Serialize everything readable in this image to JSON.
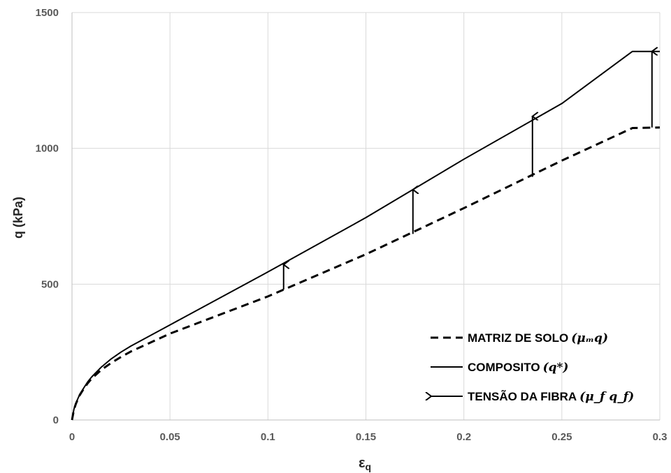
{
  "chart_data": {
    "type": "line",
    "xlabel_main": "ε",
    "xlabel_sub": "q",
    "ylabel": "q (kPa)",
    "xlim": [
      0,
      0.3
    ],
    "ylim": [
      0,
      1500
    ],
    "xticks": [
      0,
      0.05,
      0.1,
      0.15,
      0.2,
      0.25,
      0.3
    ],
    "yticks": [
      0,
      500,
      1000,
      1500
    ],
    "xtick_labels": [
      "0",
      "0.05",
      "0.1",
      "0.15",
      "0.2",
      "0.25",
      "0.3"
    ],
    "ytick_labels": [
      "0",
      "500",
      "1000",
      "1500"
    ],
    "grid": true,
    "legend_position": "bottom-right",
    "series": [
      {
        "name": "COMPOSITO (q*)",
        "style": "solid",
        "color": "#000000",
        "x": [
          0,
          0.001,
          0.002,
          0.004,
          0.006,
          0.008,
          0.01,
          0.015,
          0.02,
          0.025,
          0.03,
          0.05,
          0.1,
          0.15,
          0.2,
          0.25,
          0.286,
          0.3
        ],
        "y": [
          0,
          40,
          62,
          95,
          118,
          140,
          158,
          195,
          225,
          250,
          272,
          350,
          545,
          745,
          960,
          1165,
          1357,
          1357
        ]
      },
      {
        "name": "MATRIZ DE SOLO (μₘq)",
        "style": "dashed",
        "color": "#000000",
        "x": [
          0,
          0.001,
          0.002,
          0.004,
          0.006,
          0.008,
          0.01,
          0.015,
          0.02,
          0.025,
          0.03,
          0.05,
          0.1,
          0.15,
          0.2,
          0.25,
          0.286,
          0.3
        ],
        "y": [
          0,
          38,
          60,
          92,
          115,
          135,
          152,
          185,
          210,
          232,
          252,
          318,
          455,
          610,
          780,
          955,
          1075,
          1077
        ]
      }
    ],
    "arrows": [
      {
        "x": 0.108,
        "y_from": 480,
        "y_to": 572
      },
      {
        "x": 0.174,
        "y_from": 685,
        "y_to": 848
      },
      {
        "x": 0.235,
        "y_from": 895,
        "y_to": 1118
      },
      {
        "x": 0.296,
        "y_from": 1077,
        "y_to": 1357
      }
    ],
    "legend": [
      {
        "label": "MATRIZ DE SOLO",
        "math": "(μₘq)",
        "style": "dashed"
      },
      {
        "label": "COMPOSITO",
        "math": "(q*)",
        "style": "solid"
      },
      {
        "label": "TENSÃO DA FIBRA",
        "math": "(μ_f q_f)",
        "style": "arrow"
      }
    ]
  }
}
